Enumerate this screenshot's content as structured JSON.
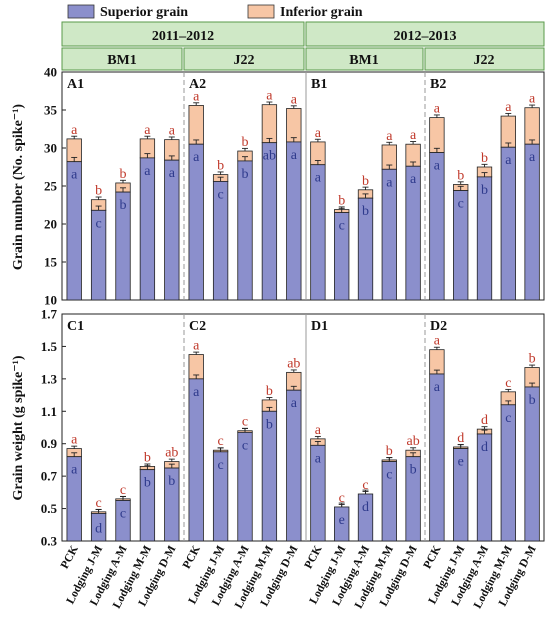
{
  "legend": {
    "superior_label": "Superior grain",
    "inferior_label": "Inferior grain"
  },
  "colors": {
    "superior": "#8b8fcc",
    "inferior": "#f7c6a5",
    "header_fill": "#cfe8c6",
    "header_border": "#5a9a4a",
    "letter_top": "#c0392b",
    "letter_inner": "#2e3a8c"
  },
  "headers": {
    "years": [
      "2011–2012",
      "2012–2013"
    ],
    "cultivars": [
      "BM1",
      "J22",
      "BM1",
      "J22"
    ]
  },
  "treatments": [
    "PCK",
    "Lodging J-M",
    "Lodging A-M",
    "Lodging M-M",
    "Lodging D-M"
  ],
  "chart_data": [
    {
      "type": "bar",
      "stacked": true,
      "ylabel": "Grain number (No. spike⁻¹)",
      "ylim": [
        10,
        40
      ],
      "yticks": [
        10,
        15,
        20,
        25,
        30,
        35,
        40
      ],
      "categories": [
        "PCK",
        "Lodging J-M",
        "Lodging A-M",
        "Lodging M-M",
        "Lodging D-M"
      ],
      "panels": [
        {
          "label": "A1",
          "superior": [
            28.2,
            21.8,
            24.2,
            28.7,
            28.4
          ],
          "total": [
            31.2,
            23.2,
            25.4,
            31.2,
            31.1
          ],
          "sup_letters": [
            "a",
            "c",
            "b",
            "a",
            "a"
          ],
          "tot_letters": [
            "a",
            "b",
            "b",
            "a",
            "a"
          ]
        },
        {
          "label": "A2",
          "superior": [
            30.5,
            25.6,
            28.3,
            30.7,
            30.8
          ],
          "total": [
            35.6,
            26.5,
            29.6,
            35.7,
            35.2
          ],
          "sup_letters": [
            "a",
            "c",
            "b",
            "ab",
            "a"
          ],
          "tot_letters": [
            "a",
            "b",
            "b",
            "a",
            "a"
          ]
        },
        {
          "label": "B1",
          "superior": [
            27.8,
            21.5,
            23.4,
            27.2,
            27.6
          ],
          "total": [
            30.8,
            21.9,
            24.5,
            30.4,
            30.5
          ],
          "sup_letters": [
            "a",
            "c",
            "b",
            "a",
            "a"
          ],
          "tot_letters": [
            "a",
            "b",
            "b",
            "a",
            "a"
          ]
        },
        {
          "label": "B2",
          "superior": [
            29.4,
            24.4,
            26.2,
            30.1,
            30.5
          ],
          "total": [
            34.0,
            25.2,
            27.5,
            34.2,
            35.3
          ],
          "sup_letters": [
            "a",
            "c",
            "b",
            "a",
            "a"
          ],
          "tot_letters": [
            "a",
            "b",
            "b",
            "a",
            "a"
          ]
        }
      ]
    },
    {
      "type": "bar",
      "stacked": true,
      "ylabel": "Grain weight  (g spike⁻¹)",
      "ylim": [
        0.3,
        1.7
      ],
      "yticks": [
        0.3,
        0.5,
        0.7,
        0.9,
        1.1,
        1.3,
        1.5,
        1.7
      ],
      "categories": [
        "PCK",
        "Lodging J-M",
        "Lodging A-M",
        "Lodging M-M",
        "Lodging D-M"
      ],
      "panels": [
        {
          "label": "C1",
          "superior": [
            0.82,
            0.47,
            0.55,
            0.74,
            0.75
          ],
          "total": [
            0.87,
            0.48,
            0.56,
            0.76,
            0.79
          ],
          "sup_letters": [
            "a",
            "d",
            "c",
            "b",
            "b"
          ],
          "tot_letters": [
            "a",
            "c",
            "c",
            "b",
            "ab"
          ]
        },
        {
          "label": "C2",
          "superior": [
            1.3,
            0.85,
            0.97,
            1.1,
            1.23
          ],
          "total": [
            1.45,
            0.86,
            0.98,
            1.17,
            1.34
          ],
          "sup_letters": [
            "a",
            "c",
            "c",
            "b",
            "a"
          ],
          "tot_letters": [
            "a",
            "c",
            "c",
            "b",
            "ab"
          ]
        },
        {
          "label": "D1",
          "superior": [
            0.89,
            0.51,
            0.59,
            0.79,
            0.82
          ],
          "total": [
            0.93,
            0.51,
            0.59,
            0.8,
            0.86
          ],
          "sup_letters": [
            "a",
            "e",
            "d",
            "c",
            "b"
          ],
          "tot_letters": [
            "a",
            "c",
            "c",
            "b",
            "ab"
          ]
        },
        {
          "label": "D2",
          "superior": [
            1.33,
            0.87,
            0.96,
            1.14,
            1.25
          ],
          "total": [
            1.48,
            0.88,
            0.99,
            1.22,
            1.37
          ],
          "sup_letters": [
            "a",
            "e",
            "d",
            "c",
            "b"
          ],
          "tot_letters": [
            "a",
            "d",
            "d",
            "c",
            "b"
          ]
        }
      ]
    }
  ]
}
